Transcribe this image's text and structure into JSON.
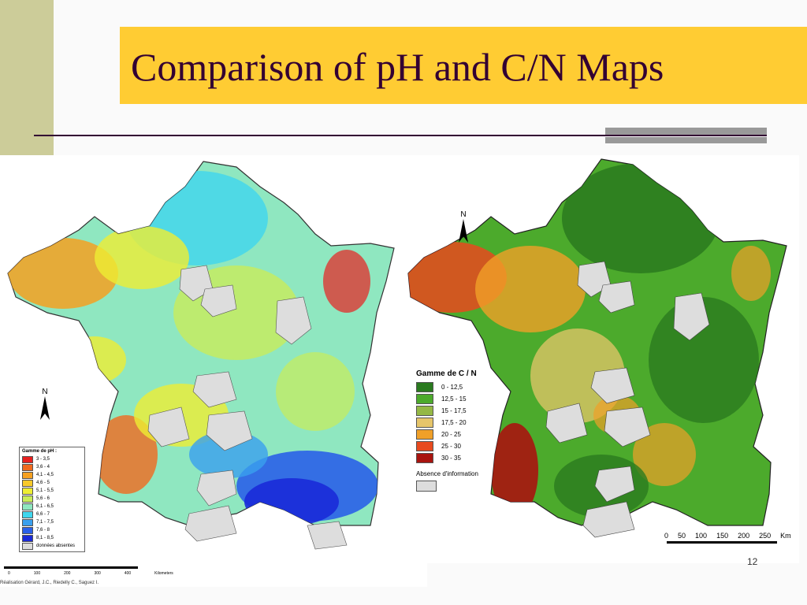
{
  "slide": {
    "title": "Comparison of pH and C/N Maps",
    "page_number": "12",
    "colors": {
      "title_bg": "#ffcc33",
      "title_text": "#330033",
      "left_bar": "#cccc99",
      "rule": "#330033",
      "accent": "#999999"
    }
  },
  "ph_map": {
    "legend_title": "Gamme de pH :",
    "legend": [
      {
        "label": "3 - 3,5",
        "color": "#e8201f"
      },
      {
        "label": "3,6 - 4",
        "color": "#f06a1e"
      },
      {
        "label": "4,1 - 4,5",
        "color": "#f5a021"
      },
      {
        "label": "4,6 - 5",
        "color": "#f7c92a"
      },
      {
        "label": "5,1 - 5,5",
        "color": "#eeee33"
      },
      {
        "label": "5,6 - 6",
        "color": "#c8ec5a"
      },
      {
        "label": "6,1 - 6,5",
        "color": "#8fe7c0"
      },
      {
        "label": "6,6 - 7",
        "color": "#3fd6ee"
      },
      {
        "label": "7,1 - 7,5",
        "color": "#3aa0ee"
      },
      {
        "label": "7,6 - 8",
        "color": "#2a60e8"
      },
      {
        "label": "8,1 - 8,5",
        "color": "#1a2ad8"
      },
      {
        "label": "données absentes",
        "color": "#dddddd"
      }
    ],
    "north_label": "N",
    "scale": {
      "ticks": [
        "0",
        "100",
        "200",
        "300",
        "400"
      ],
      "unit": "Kilometers"
    },
    "credit": "Réalisation Gérard, J.C., Riedelly C., Saguez I."
  },
  "cn_map": {
    "legend_title": "Gamme de C / N",
    "legend": [
      {
        "label": "0 - 12,5",
        "color": "#2a7a1f"
      },
      {
        "label": "12,5 - 15",
        "color": "#4caa2c"
      },
      {
        "label": "15 - 17,5",
        "color": "#95b845"
      },
      {
        "label": "17,5 - 20",
        "color": "#e6c56a"
      },
      {
        "label": "20 - 25",
        "color": "#f0a028"
      },
      {
        "label": "25 - 30",
        "color": "#e84a1e"
      },
      {
        "label": "30 - 35",
        "color": "#a8140f"
      }
    ],
    "absence_label": "Absence d'information",
    "absence_color": "#dddddd",
    "north_label": "N",
    "scale": {
      "ticks": [
        "0",
        "50",
        "100",
        "150",
        "200",
        "250"
      ],
      "unit": "Km"
    }
  }
}
